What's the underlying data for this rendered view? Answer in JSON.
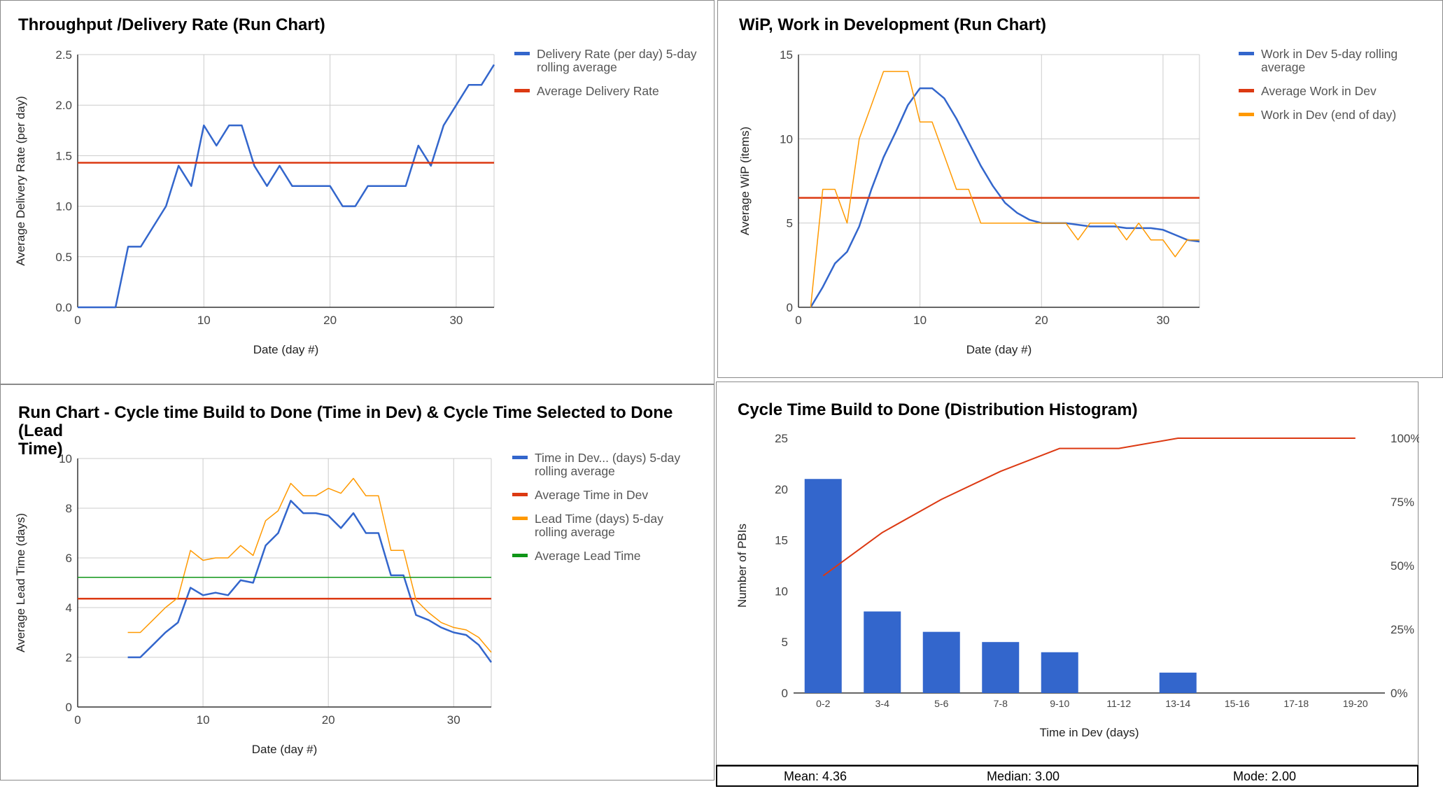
{
  "colors": {
    "blue": "#3366cc",
    "red": "#dc3912",
    "orange": "#ff9900",
    "green": "#109618",
    "grid": "#cccccc",
    "axis": "#333333"
  },
  "stats": {
    "mean": "Mean:  4.36",
    "median": "Median:  3.00",
    "mode": "Mode:  2.00"
  },
  "chart_data": [
    {
      "type": "line",
      "title": "Throughput /Delivery Rate (Run Chart)",
      "xlabel": "Date (day #)",
      "ylabel": "Average Delivery Rate (per day)",
      "xlim": [
        0,
        33
      ],
      "ylim": [
        0,
        2.5
      ],
      "xticks": [
        "0",
        "10",
        "20",
        "30"
      ],
      "yticks": [
        "0.0",
        "0.5",
        "1.0",
        "1.5",
        "2.0",
        "2.5"
      ],
      "grid": true,
      "legend": "right",
      "series": [
        {
          "name": "Delivery Rate (per day) 5-day rolling average",
          "legend_lines": [
            "Delivery Rate (per day) 5-day",
            "rolling average"
          ],
          "color": "#3366cc",
          "width": 2.5,
          "x": [
            0,
            1,
            2,
            3,
            4,
            5,
            6,
            7,
            8,
            9,
            10,
            11,
            12,
            13,
            14,
            15,
            16,
            17,
            18,
            19,
            20,
            21,
            22,
            23,
            24,
            25,
            26,
            27,
            28,
            29,
            30,
            31,
            32,
            33
          ],
          "y": [
            0,
            0,
            0,
            0,
            0.6,
            0.6,
            0.8,
            1.0,
            1.4,
            1.2,
            1.8,
            1.6,
            1.8,
            1.8,
            1.4,
            1.2,
            1.4,
            1.2,
            1.2,
            1.2,
            1.2,
            1.0,
            1.0,
            1.2,
            1.2,
            1.2,
            1.2,
            1.6,
            1.4,
            1.8,
            2.0,
            2.2,
            2.2,
            2.4
          ]
        },
        {
          "name": "Average Delivery Rate",
          "legend_lines": [
            "Average Delivery Rate"
          ],
          "color": "#dc3912",
          "width": 2.5,
          "x": [
            0,
            33
          ],
          "y": [
            1.43,
            1.43
          ]
        }
      ]
    },
    {
      "type": "line",
      "title": "WiP, Work in Development (Run Chart)",
      "xlabel": "Date (day #)",
      "ylabel": "Average WiP (items)",
      "xlim": [
        0,
        33
      ],
      "ylim": [
        0,
        15
      ],
      "xticks": [
        "0",
        "10",
        "20",
        "30"
      ],
      "yticks": [
        "0",
        "5",
        "10",
        "15"
      ],
      "grid": true,
      "legend": "right",
      "series": [
        {
          "name": "Work in Dev 5-day rolling average",
          "legend_lines": [
            "Work in Dev 5-day rolling",
            "average"
          ],
          "color": "#3366cc",
          "width": 2.5,
          "x": [
            1,
            2,
            3,
            4,
            5,
            6,
            7,
            8,
            9,
            10,
            11,
            12,
            13,
            14,
            15,
            16,
            17,
            18,
            19,
            20,
            21,
            22,
            23,
            24,
            25,
            26,
            27,
            28,
            29,
            30,
            31,
            32,
            33
          ],
          "y": [
            0,
            1.2,
            2.6,
            3.3,
            4.8,
            7,
            8.9,
            10.4,
            12,
            13,
            13,
            12.4,
            11.2,
            9.8,
            8.4,
            7.2,
            6.2,
            5.6,
            5.2,
            5,
            5,
            5,
            4.9,
            4.8,
            4.8,
            4.8,
            4.7,
            4.7,
            4.7,
            4.6,
            4.3,
            4.0,
            3.9
          ]
        },
        {
          "name": "Average Work in Dev",
          "legend_lines": [
            "Average Work in Dev"
          ],
          "color": "#dc3912",
          "width": 2.5,
          "x": [
            0,
            33
          ],
          "y": [
            6.5,
            6.5
          ]
        },
        {
          "name": "Work in Dev (end of day)",
          "legend_lines": [
            "Work in Dev (end of day)"
          ],
          "color": "#ff9900",
          "width": 1.5,
          "x": [
            1,
            2,
            3,
            4,
            5,
            6,
            7,
            8,
            9,
            10,
            11,
            12,
            13,
            14,
            15,
            16,
            17,
            18,
            19,
            20,
            21,
            22,
            23,
            24,
            25,
            26,
            27,
            28,
            29,
            30,
            31,
            32,
            33
          ],
          "y": [
            0,
            7,
            7,
            5,
            10,
            12,
            14,
            14,
            14,
            11,
            11,
            9,
            7,
            7,
            5,
            5,
            5,
            5,
            5,
            5,
            5,
            5,
            4,
            5,
            5,
            5,
            4,
            5,
            4,
            4,
            3,
            4,
            4
          ]
        }
      ]
    },
    {
      "type": "line",
      "title": "Run Chart - Cycle time Build to Done (Time in Dev) & Cycle Time Selected to Done (Lead Time)",
      "title_lines": [
        "Run Chart - Cycle time Build to Done (Time in Dev) & Cycle Time Selected to Done (Lead",
        "Time)"
      ],
      "xlabel": "Date (day #)",
      "ylabel": "Average Lead Time (days)",
      "xlim": [
        0,
        33
      ],
      "ylim": [
        0,
        10
      ],
      "xticks": [
        "0",
        "10",
        "20",
        "30"
      ],
      "yticks": [
        "0",
        "2",
        "4",
        "6",
        "8",
        "10"
      ],
      "grid": true,
      "legend": "right",
      "series": [
        {
          "name": "Time in Dev... (days) 5-day rolling average",
          "legend_lines": [
            "Time in Dev... (days) 5-day",
            "rolling average"
          ],
          "color": "#3366cc",
          "width": 2.5,
          "x": [
            4,
            5,
            6,
            7,
            8,
            9,
            10,
            11,
            12,
            13,
            14,
            15,
            16,
            17,
            18,
            19,
            20,
            21,
            22,
            23,
            24,
            25,
            26,
            27,
            28,
            29,
            30,
            31,
            32,
            33
          ],
          "y": [
            2,
            2,
            2.5,
            3,
            3.4,
            4.8,
            4.5,
            4.6,
            4.5,
            5.1,
            5,
            6.5,
            7,
            8.3,
            7.8,
            7.8,
            7.7,
            7.2,
            7.8,
            7,
            7,
            5.3,
            5.3,
            3.7,
            3.5,
            3.2,
            3,
            2.9,
            2.5,
            1.8
          ]
        },
        {
          "name": "Average Time in Dev",
          "legend_lines": [
            "Average Time in Dev"
          ],
          "color": "#dc3912",
          "width": 2.5,
          "x": [
            0,
            33
          ],
          "y": [
            4.36,
            4.36
          ]
        },
        {
          "name": "Lead Time (days) 5-day rolling average",
          "legend_lines": [
            "Lead Time (days) 5-day",
            "rolling average"
          ],
          "color": "#ff9900",
          "width": 1.5,
          "x": [
            4,
            5,
            6,
            7,
            8,
            9,
            10,
            11,
            12,
            13,
            14,
            15,
            16,
            17,
            18,
            19,
            20,
            21,
            22,
            23,
            24,
            25,
            26,
            27,
            28,
            29,
            30,
            31,
            32,
            33
          ],
          "y": [
            3,
            3,
            3.5,
            4,
            4.4,
            6.3,
            5.9,
            6,
            6,
            6.5,
            6.1,
            7.5,
            7.9,
            9,
            8.5,
            8.5,
            8.8,
            8.6,
            9.2,
            8.5,
            8.5,
            6.3,
            6.3,
            4.3,
            3.8,
            3.4,
            3.2,
            3.1,
            2.8,
            2.2
          ]
        },
        {
          "name": "Average Lead Time",
          "legend_lines": [
            "Average Lead Time"
          ],
          "color": "#109618",
          "width": 1.5,
          "x": [
            0,
            33
          ],
          "y": [
            5.22,
            5.22
          ]
        }
      ]
    },
    {
      "type": "bar",
      "title": "Cycle Time Build to Done (Distribution Histogram)",
      "xlabel": "Time in Dev (days)",
      "ylabel": "Number of PBIs",
      "categories": [
        "0-2",
        "3-4",
        "5-6",
        "7-8",
        "9-10",
        "11-12",
        "13-14",
        "15-16",
        "17-18",
        "19-20"
      ],
      "values": [
        21,
        8,
        6,
        5,
        4,
        0,
        2,
        0,
        0,
        0
      ],
      "cumulative_percent": [
        46,
        63,
        76,
        87,
        96,
        96,
        100,
        100,
        100,
        100
      ],
      "ylim": [
        0,
        25
      ],
      "yticks": [
        "0",
        "5",
        "10",
        "15",
        "20",
        "25"
      ],
      "y2ticks": [
        "0%",
        "25%",
        "50%",
        "75%",
        "100%"
      ],
      "bar_color": "#3366cc",
      "line_color": "#dc3912",
      "grid": false
    }
  ]
}
